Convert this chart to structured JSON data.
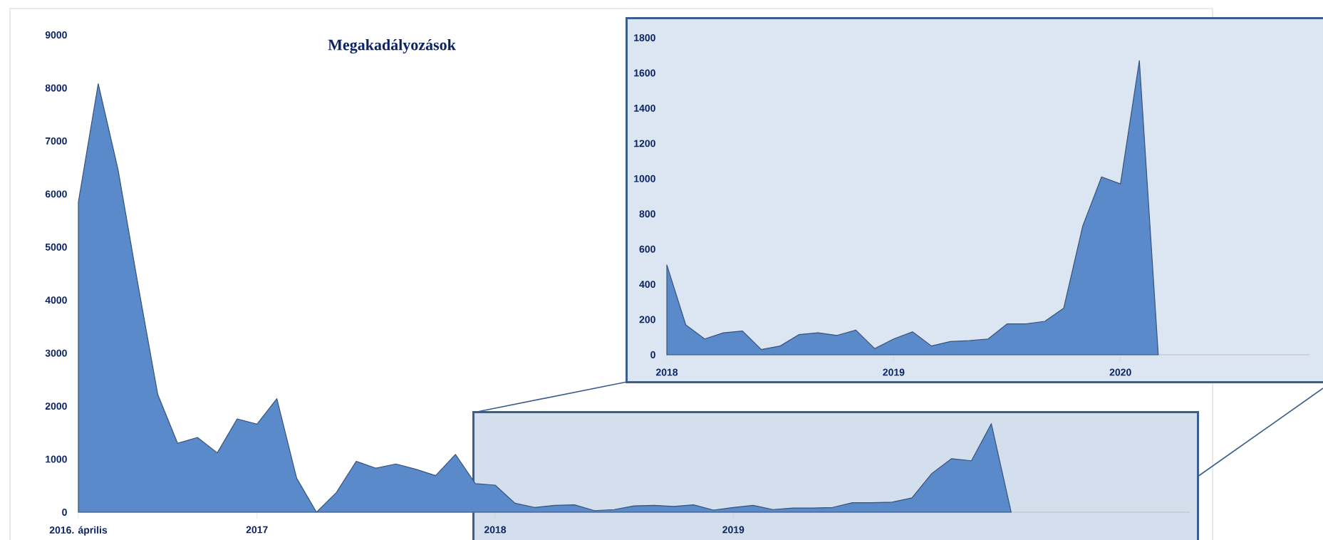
{
  "chart_data": [
    {
      "type": "area",
      "title": "Megakadályozások",
      "color": "#5a8ac9",
      "x": [
        "2016-04",
        "2016-05",
        "2016-06",
        "2016-07",
        "2016-08",
        "2016-09",
        "2016-10",
        "2016-11",
        "2016-12",
        "2017-01",
        "2017-02",
        "2017-03",
        "2017-04",
        "2017-05",
        "2017-06",
        "2017-07",
        "2017-08",
        "2017-09",
        "2017-10",
        "2017-11",
        "2017-12",
        "2018-01",
        "2018-02",
        "2018-03",
        "2018-04",
        "2018-05",
        "2018-06",
        "2018-07",
        "2018-08",
        "2018-09",
        "2018-10",
        "2018-11",
        "2018-12",
        "2019-01",
        "2019-02",
        "2019-03",
        "2019-04",
        "2019-05",
        "2019-06",
        "2019-07",
        "2019-08",
        "2019-09",
        "2019-10",
        "2019-11",
        "2019-12",
        "2020-01",
        "2020-02",
        "2020-03"
      ],
      "values": [
        5850,
        8080,
        6460,
        4300,
        2220,
        1300,
        1410,
        1120,
        1760,
        1660,
        2140,
        640,
        0,
        370,
        960,
        830,
        910,
        810,
        690,
        1090,
        540,
        510,
        170,
        90,
        130,
        140,
        30,
        50,
        120,
        130,
        110,
        140,
        40,
        90,
        130,
        50,
        80,
        80,
        90,
        180,
        180,
        190,
        270,
        730,
        1010,
        970,
        1670,
        0
      ],
      "xlim": [
        "2016-04",
        "2020-12"
      ],
      "xticks": [
        {
          "value": "2016-04",
          "label": "2016. április"
        },
        {
          "value": "2017-01",
          "label": "2017"
        },
        {
          "value": "2018-01",
          "label": "2018"
        },
        {
          "value": "2019-01",
          "label": "2019"
        }
      ],
      "ylim": [
        0,
        9000
      ],
      "yticks": [
        0,
        1000,
        2000,
        3000,
        4000,
        5000,
        6000,
        7000,
        8000,
        9000
      ]
    },
    {
      "type": "area",
      "color": "#5a8ac9",
      "x": [
        "2018-01",
        "2018-02",
        "2018-03",
        "2018-04",
        "2018-05",
        "2018-06",
        "2018-07",
        "2018-08",
        "2018-09",
        "2018-10",
        "2018-11",
        "2018-12",
        "2019-01",
        "2019-02",
        "2019-03",
        "2019-04",
        "2019-05",
        "2019-06",
        "2019-07",
        "2019-08",
        "2019-09",
        "2019-10",
        "2019-11",
        "2019-12",
        "2020-01",
        "2020-02",
        "2020-03"
      ],
      "values": [
        510,
        170,
        90,
        125,
        135,
        30,
        50,
        115,
        125,
        110,
        140,
        35,
        90,
        130,
        50,
        75,
        80,
        90,
        175,
        175,
        190,
        265,
        730,
        1010,
        970,
        1670,
        0
      ],
      "xlim": [
        "2018-01",
        "2020-11"
      ],
      "xticks": [
        {
          "value": "2018-01",
          "label": "2018"
        },
        {
          "value": "2019-01",
          "label": "2019"
        },
        {
          "value": "2020-01",
          "label": "2020"
        }
      ],
      "ylim": [
        0,
        1800
      ],
      "yticks": [
        0,
        200,
        400,
        600,
        800,
        1000,
        1200,
        1400,
        1600,
        1800
      ]
    }
  ]
}
